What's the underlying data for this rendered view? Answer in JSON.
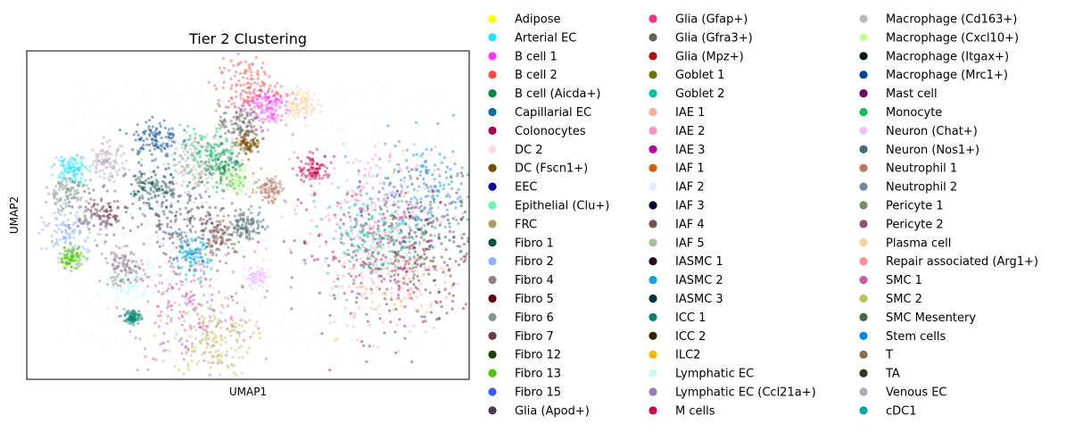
{
  "chart_data": {
    "type": "scatter",
    "title": "Tier 2 Clustering",
    "xlabel": "UMAP1",
    "ylabel": "UMAP2",
    "legend_position": "right",
    "legend_columns": 3,
    "grid": false,
    "ticks": false,
    "legend": [
      {
        "name": "Adipose",
        "color": "#ffff00"
      },
      {
        "name": "Arterial EC",
        "color": "#1ce6ff"
      },
      {
        "name": "B cell 1",
        "color": "#ff34ff"
      },
      {
        "name": "B cell 2",
        "color": "#ff4a46"
      },
      {
        "name": "B cell (Aicda+)",
        "color": "#008941"
      },
      {
        "name": "Capillarial EC",
        "color": "#006fa6"
      },
      {
        "name": "Colonocytes",
        "color": "#a30059"
      },
      {
        "name": "DC 2",
        "color": "#ffdbe5"
      },
      {
        "name": "DC (Fscn1+)",
        "color": "#7a4900"
      },
      {
        "name": "EEC",
        "color": "#0000a6"
      },
      {
        "name": "Epithelial (Clu+)",
        "color": "#63ffac"
      },
      {
        "name": "FRC",
        "color": "#b79762"
      },
      {
        "name": "Fibro 1",
        "color": "#004d43"
      },
      {
        "name": "Fibro 2",
        "color": "#8fb0ff"
      },
      {
        "name": "Fibro 4",
        "color": "#997d87"
      },
      {
        "name": "Fibro 5",
        "color": "#5a0007"
      },
      {
        "name": "Fibro 6",
        "color": "#809693"
      },
      {
        "name": "Fibro 7",
        "color": "#6a3a4c"
      },
      {
        "name": "Fibro 12",
        "color": "#1b4400"
      },
      {
        "name": "Fibro 13",
        "color": "#4fc601"
      },
      {
        "name": "Fibro 15",
        "color": "#3b5dff"
      },
      {
        "name": "Glia (Apod+)",
        "color": "#4a3b53"
      },
      {
        "name": "Glia (Gfap+)",
        "color": "#ff2f80"
      },
      {
        "name": "Glia (Gfra3+)",
        "color": "#61615a"
      },
      {
        "name": "Glia (Mpz+)",
        "color": "#ba0900"
      },
      {
        "name": "Goblet 1",
        "color": "#6b7900"
      },
      {
        "name": "Goblet 2",
        "color": "#00c2a0"
      },
      {
        "name": "IAE 1",
        "color": "#ffaa92"
      },
      {
        "name": "IAE 2",
        "color": "#ff90c9"
      },
      {
        "name": "IAE 3",
        "color": "#b903aa"
      },
      {
        "name": "IAF 1",
        "color": "#d16100"
      },
      {
        "name": "IAF 2",
        "color": "#ddefff"
      },
      {
        "name": "IAF 3",
        "color": "#000035"
      },
      {
        "name": "IAF 4",
        "color": "#7b4f4b"
      },
      {
        "name": "IAF 5",
        "color": "#a1c299"
      },
      {
        "name": "IASMC 1",
        "color": "#300018"
      },
      {
        "name": "IASMC 2",
        "color": "#0aa6d8"
      },
      {
        "name": "IASMC 3",
        "color": "#013349"
      },
      {
        "name": "ICC 1",
        "color": "#00846f"
      },
      {
        "name": "ICC 2",
        "color": "#372101"
      },
      {
        "name": "ILC2",
        "color": "#ffb500"
      },
      {
        "name": "Lymphatic EC",
        "color": "#c2ffed"
      },
      {
        "name": "Lymphatic EC (Ccl21a+)",
        "color": "#a079bf"
      },
      {
        "name": "M cells",
        "color": "#cc0744"
      },
      {
        "name": "Macrophage (Cd163+)",
        "color": "#c0b9b2"
      },
      {
        "name": "Macrophage (Cxcl10+)",
        "color": "#c2ff99"
      },
      {
        "name": "Macrophage (Itgax+)",
        "color": "#001e09"
      },
      {
        "name": "Macrophage (Mrc1+)",
        "color": "#00489c"
      },
      {
        "name": "Mast cell",
        "color": "#6f0062"
      },
      {
        "name": "Monocyte",
        "color": "#0cbd66"
      },
      {
        "name": "Neuron (Chat+)",
        "color": "#eec3ff"
      },
      {
        "name": "Neuron (Nos1+)",
        "color": "#456d75"
      },
      {
        "name": "Neutrophil 1",
        "color": "#b77b68"
      },
      {
        "name": "Neutrophil 2",
        "color": "#7a87a1"
      },
      {
        "name": "Pericyte 1",
        "color": "#788d66"
      },
      {
        "name": "Pericyte 2",
        "color": "#885578"
      },
      {
        "name": "Plasma cell",
        "color": "#fad09f"
      },
      {
        "name": "Repair associated  (Arg1+)",
        "color": "#ff8a9a"
      },
      {
        "name": "SMC 1",
        "color": "#d157a0"
      },
      {
        "name": "SMC 2",
        "color": "#bec459"
      },
      {
        "name": "SMC Mesentery",
        "color": "#456648"
      },
      {
        "name": "Stem cells",
        "color": "#0086ed"
      },
      {
        "name": "T",
        "color": "#886f4c"
      },
      {
        "name": "TA",
        "color": "#34362d"
      },
      {
        "name": "Venous EC",
        "color": "#b4a8bd"
      },
      {
        "name": "cDC1",
        "color": "#00a6aa"
      }
    ],
    "clusters": [
      {
        "series": "SMC 1",
        "x": 0.37,
        "y": 0.21,
        "spread": 0.16
      },
      {
        "series": "SMC 2",
        "x": 0.42,
        "y": 0.12,
        "spread": 0.1
      },
      {
        "series": "Colonocytes",
        "x": 0.82,
        "y": 0.37,
        "spread": 0.22
      },
      {
        "series": "TA",
        "x": 0.9,
        "y": 0.4,
        "spread": 0.16
      },
      {
        "series": "Stem cells",
        "x": 0.91,
        "y": 0.58,
        "spread": 0.14
      },
      {
        "series": "IAE 2",
        "x": 0.78,
        "y": 0.53,
        "spread": 0.16
      },
      {
        "series": "IAE 1",
        "x": 0.82,
        "y": 0.31,
        "spread": 0.16
      },
      {
        "series": "Goblet 2",
        "x": 0.78,
        "y": 0.44,
        "spread": 0.12
      },
      {
        "series": "B cell 2",
        "x": 0.5,
        "y": 0.89,
        "spread": 0.08
      },
      {
        "series": "B cell 1",
        "x": 0.54,
        "y": 0.83,
        "spread": 0.06
      },
      {
        "series": "Glia (Gfra3+)",
        "x": 0.48,
        "y": 0.78,
        "spread": 0.05
      },
      {
        "series": "DC (Fscn1+)",
        "x": 0.5,
        "y": 0.72,
        "spread": 0.03
      },
      {
        "series": "Plasma cell",
        "x": 0.62,
        "y": 0.84,
        "spread": 0.04
      },
      {
        "series": "Macrophage (Mrc1+)",
        "x": 0.29,
        "y": 0.73,
        "spread": 0.06
      },
      {
        "series": "Monocyte",
        "x": 0.41,
        "y": 0.69,
        "spread": 0.07
      },
      {
        "series": "B cell (Aicda+)",
        "x": 0.45,
        "y": 0.63,
        "spread": 0.06
      },
      {
        "series": "Macrophage (Cxcl10+)",
        "x": 0.47,
        "y": 0.61,
        "spread": 0.04
      },
      {
        "series": "Macrophage (Cd163+)",
        "x": 0.38,
        "y": 0.64,
        "spread": 0.08
      },
      {
        "series": "Glia (Apod+)",
        "x": 0.35,
        "y": 0.48,
        "spread": 0.12
      },
      {
        "series": "Fibro 7",
        "x": 0.17,
        "y": 0.5,
        "spread": 0.06
      },
      {
        "series": "Fibro 1",
        "x": 0.28,
        "y": 0.58,
        "spread": 0.06
      },
      {
        "series": "Fibro 2",
        "x": 0.1,
        "y": 0.44,
        "spread": 0.07
      },
      {
        "series": "IAF 2",
        "x": 0.32,
        "y": 0.38,
        "spread": 0.2
      },
      {
        "series": "Arterial EC",
        "x": 0.1,
        "y": 0.64,
        "spread": 0.04
      },
      {
        "series": "Fibro 6",
        "x": 0.09,
        "y": 0.57,
        "spread": 0.05
      },
      {
        "series": "IASMC 2",
        "x": 0.37,
        "y": 0.37,
        "spread": 0.05
      },
      {
        "series": "IAF 4",
        "x": 0.44,
        "y": 0.44,
        "spread": 0.06
      },
      {
        "series": "Neutrophil 1",
        "x": 0.55,
        "y": 0.58,
        "spread": 0.04
      },
      {
        "series": "M cells",
        "x": 0.65,
        "y": 0.64,
        "spread": 0.04
      },
      {
        "series": "Lymphatic EC",
        "x": 0.23,
        "y": 0.29,
        "spread": 0.05
      },
      {
        "series": "Fibro 13",
        "x": 0.1,
        "y": 0.37,
        "spread": 0.03
      },
      {
        "series": "Venous EC",
        "x": 0.18,
        "y": 0.66,
        "spread": 0.05
      },
      {
        "series": "Neuron (Chat+)",
        "x": 0.52,
        "y": 0.31,
        "spread": 0.03
      },
      {
        "series": "Fibro 4",
        "x": 0.22,
        "y": 0.34,
        "spread": 0.05
      },
      {
        "series": "ICC 1",
        "x": 0.24,
        "y": 0.19,
        "spread": 0.02
      },
      {
        "series": "Neuron (Nos1+)",
        "x": 0.5,
        "y": 0.47,
        "spread": 0.04
      }
    ]
  }
}
